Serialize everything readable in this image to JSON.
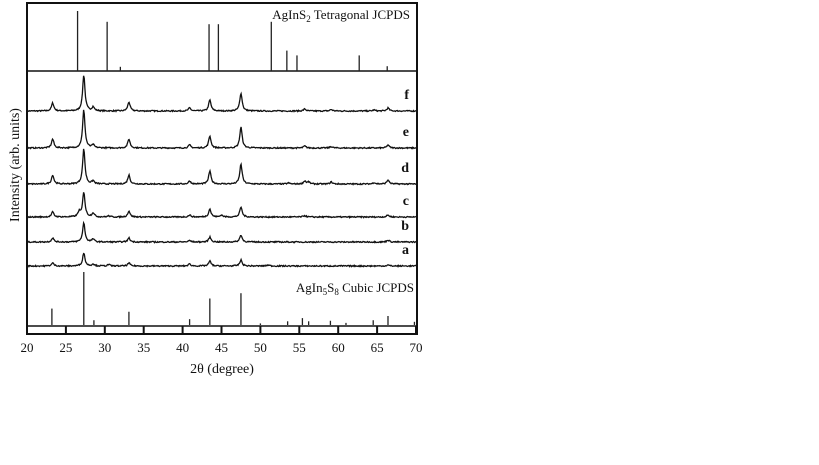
{
  "chart_data": {
    "type": "line",
    "xlabel": "2θ (degree)",
    "ylabel": "Intensity (arb. units)",
    "xlim": [
      20,
      70
    ],
    "xticks": [
      20,
      25,
      30,
      35,
      40,
      45,
      50,
      55,
      60,
      65,
      70
    ],
    "reference_top": {
      "label_main": "AgInS",
      "label_sub": "2",
      "label_rest": " Tetragonal JCPDS",
      "sticks": [
        [
          26.5,
          100
        ],
        [
          30.3,
          82
        ],
        [
          32.0,
          7
        ],
        [
          43.4,
          78
        ],
        [
          44.6,
          78
        ],
        [
          51.4,
          82
        ],
        [
          53.4,
          34
        ],
        [
          54.7,
          26
        ],
        [
          62.7,
          26
        ],
        [
          66.3,
          8
        ]
      ]
    },
    "reference_bottom": {
      "label_main": "AgIn",
      "label_sub1": "5",
      "label_mid": "S",
      "label_sub2": "8",
      "label_rest": " Cubic JCPDS",
      "sticks": [
        [
          23.2,
          31
        ],
        [
          27.3,
          100
        ],
        [
          28.6,
          9
        ],
        [
          33.1,
          25
        ],
        [
          40.9,
          11
        ],
        [
          43.5,
          50
        ],
        [
          47.5,
          60
        ],
        [
          50.0,
          3
        ],
        [
          53.5,
          7
        ],
        [
          55.4,
          13
        ],
        [
          56.2,
          7
        ],
        [
          59.0,
          8
        ],
        [
          61.0,
          4
        ],
        [
          64.5,
          9
        ],
        [
          66.4,
          17
        ],
        [
          69.8,
          6
        ]
      ]
    },
    "series": [
      {
        "name": "f",
        "peaks": [
          [
            23.3,
            8
          ],
          [
            27.3,
            36
          ],
          [
            28.5,
            4
          ],
          [
            33.1,
            9
          ],
          [
            40.9,
            3
          ],
          [
            43.5,
            11
          ],
          [
            47.5,
            18
          ],
          [
            55.7,
            2
          ],
          [
            59.1,
            1.5
          ],
          [
            64.6,
            1
          ],
          [
            66.4,
            3
          ]
        ]
      },
      {
        "name": "e",
        "peaks": [
          [
            23.3,
            9
          ],
          [
            27.3,
            38
          ],
          [
            28.5,
            3
          ],
          [
            33.1,
            9
          ],
          [
            40.9,
            3
          ],
          [
            43.5,
            12
          ],
          [
            47.5,
            21
          ],
          [
            55.7,
            2
          ],
          [
            59.1,
            1.5
          ],
          [
            66.4,
            3
          ]
        ]
      },
      {
        "name": "d",
        "peaks": [
          [
            23.3,
            9
          ],
          [
            27.3,
            35
          ],
          [
            28.5,
            3
          ],
          [
            33.1,
            9
          ],
          [
            40.9,
            3
          ],
          [
            43.5,
            13
          ],
          [
            47.5,
            20
          ],
          [
            53.6,
            1
          ],
          [
            55.7,
            3
          ],
          [
            56.2,
            2
          ],
          [
            59.1,
            2
          ],
          [
            64.6,
            1.5
          ],
          [
            66.4,
            4
          ]
        ]
      },
      {
        "name": "c",
        "peaks": [
          [
            23.3,
            5
          ],
          [
            26.7,
            5
          ],
          [
            27.3,
            25
          ],
          [
            28.5,
            4
          ],
          [
            30.5,
            1
          ],
          [
            33.1,
            6
          ],
          [
            40.9,
            2
          ],
          [
            43.5,
            8
          ],
          [
            45.0,
            2
          ],
          [
            47.5,
            10
          ],
          [
            55.7,
            1.5
          ],
          [
            66.4,
            2
          ]
        ]
      },
      {
        "name": "b",
        "peaks": [
          [
            23.3,
            4
          ],
          [
            27.3,
            19
          ],
          [
            28.5,
            3
          ],
          [
            33.1,
            4
          ],
          [
            40.9,
            1.5
          ],
          [
            43.5,
            5
          ],
          [
            47.5,
            7
          ],
          [
            66.4,
            2
          ]
        ]
      },
      {
        "name": "a",
        "peaks": [
          [
            23.3,
            3
          ],
          [
            27.3,
            13
          ],
          [
            28.5,
            2
          ],
          [
            30.5,
            1.5
          ],
          [
            33.1,
            3
          ],
          [
            40.9,
            2
          ],
          [
            43.5,
            5
          ],
          [
            47.5,
            6
          ],
          [
            51.0,
            1
          ],
          [
            66.4,
            1
          ]
        ]
      }
    ]
  }
}
